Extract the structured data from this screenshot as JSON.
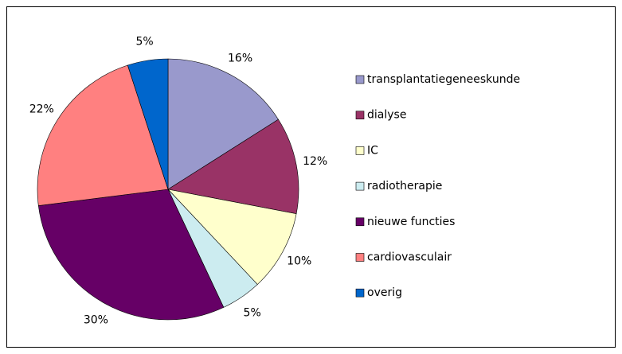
{
  "chart_data": {
    "type": "pie",
    "categories": [
      "transplantatiegeneeskunde",
      "dialyse",
      "IC",
      "radiotherapie",
      "nieuwe functies",
      "cardiovasculair",
      "overig"
    ],
    "values": [
      16,
      12,
      10,
      5,
      30,
      22,
      5
    ],
    "value_labels": [
      "16%",
      "12%",
      "10%",
      "5%",
      "30%",
      "22%",
      "5%"
    ],
    "colors": [
      "#9999cc",
      "#993366",
      "#ffffcc",
      "#ccecf0",
      "#660066",
      "#ff8080",
      "#0066cc"
    ],
    "legend": "right"
  }
}
